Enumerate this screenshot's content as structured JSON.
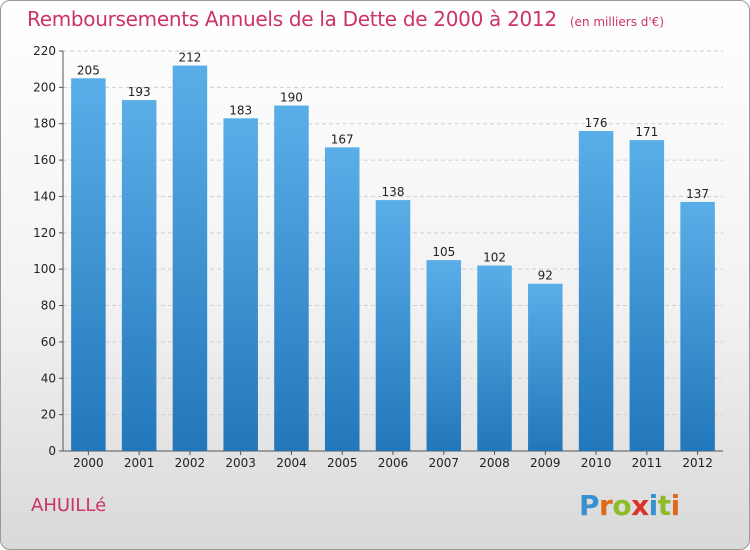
{
  "title": "Remboursements Annuels de la Dette de 2000 à 2012",
  "subtitle": "(en milliers d'€)",
  "commune": "AHUILLé",
  "logo": {
    "letters": [
      "P",
      "r",
      "o",
      "x",
      "i",
      "t",
      "i"
    ],
    "colors": [
      "#3a8fd0",
      "#e06a1c",
      "#8dbb2a",
      "#e0302a",
      "#3a8fd0",
      "#8dbb2a",
      "#e06a1c"
    ]
  },
  "colors": {
    "title": "#cc3366",
    "bar_light": "#5aaee8",
    "bar_dark": "#2277bb"
  },
  "chart_data": {
    "type": "bar",
    "categories": [
      "2000",
      "2001",
      "2002",
      "2003",
      "2004",
      "2005",
      "2006",
      "2007",
      "2008",
      "2009",
      "2010",
      "2011",
      "2012"
    ],
    "values": [
      205,
      193,
      212,
      183,
      190,
      167,
      138,
      105,
      102,
      92,
      176,
      171,
      137
    ],
    "ylim": [
      0,
      220
    ],
    "yticks": [
      0,
      20,
      40,
      60,
      80,
      100,
      120,
      140,
      160,
      180,
      200,
      220
    ],
    "grid": true,
    "data_labels": true
  }
}
